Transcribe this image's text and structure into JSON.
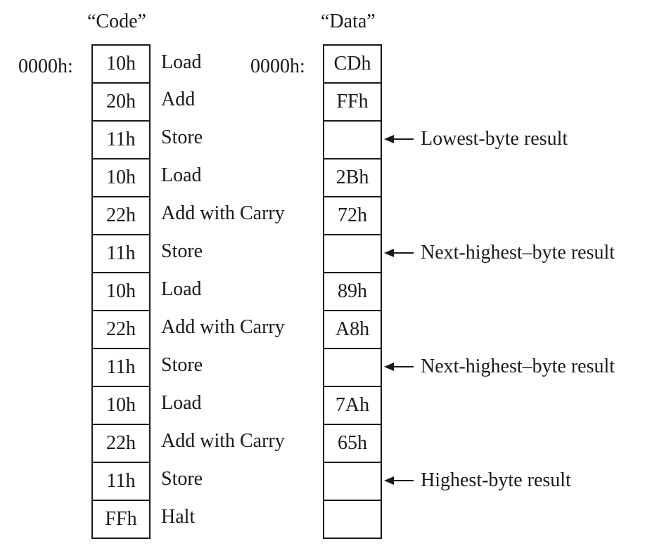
{
  "code": {
    "title": "“Code”",
    "start_address": "0000h:",
    "rows": [
      {
        "byte": "10h",
        "mnemonic": "Load"
      },
      {
        "byte": "20h",
        "mnemonic": "Add"
      },
      {
        "byte": "11h",
        "mnemonic": "Store"
      },
      {
        "byte": "10h",
        "mnemonic": "Load"
      },
      {
        "byte": "22h",
        "mnemonic": "Add with Carry"
      },
      {
        "byte": "11h",
        "mnemonic": "Store"
      },
      {
        "byte": "10h",
        "mnemonic": "Load"
      },
      {
        "byte": "22h",
        "mnemonic": "Add with Carry"
      },
      {
        "byte": "11h",
        "mnemonic": "Store"
      },
      {
        "byte": "10h",
        "mnemonic": "Load"
      },
      {
        "byte": "22h",
        "mnemonic": "Add with Carry"
      },
      {
        "byte": "11h",
        "mnemonic": "Store"
      },
      {
        "byte": "FFh",
        "mnemonic": "Halt"
      }
    ]
  },
  "data": {
    "title": "“Data”",
    "start_address": "0000h:",
    "cells": [
      "CDh",
      "FFh",
      "",
      "2Bh",
      "72h",
      "",
      "89h",
      "A8h",
      "",
      "7Ah",
      "65h",
      "",
      ""
    ],
    "annotations": [
      {
        "row": 2,
        "label": "Lowest-byte result"
      },
      {
        "row": 5,
        "label": "Next-highest–byte result"
      },
      {
        "row": 8,
        "label": "Next-highest–byte result"
      },
      {
        "row": 11,
        "label": "Highest-byte result"
      }
    ]
  }
}
